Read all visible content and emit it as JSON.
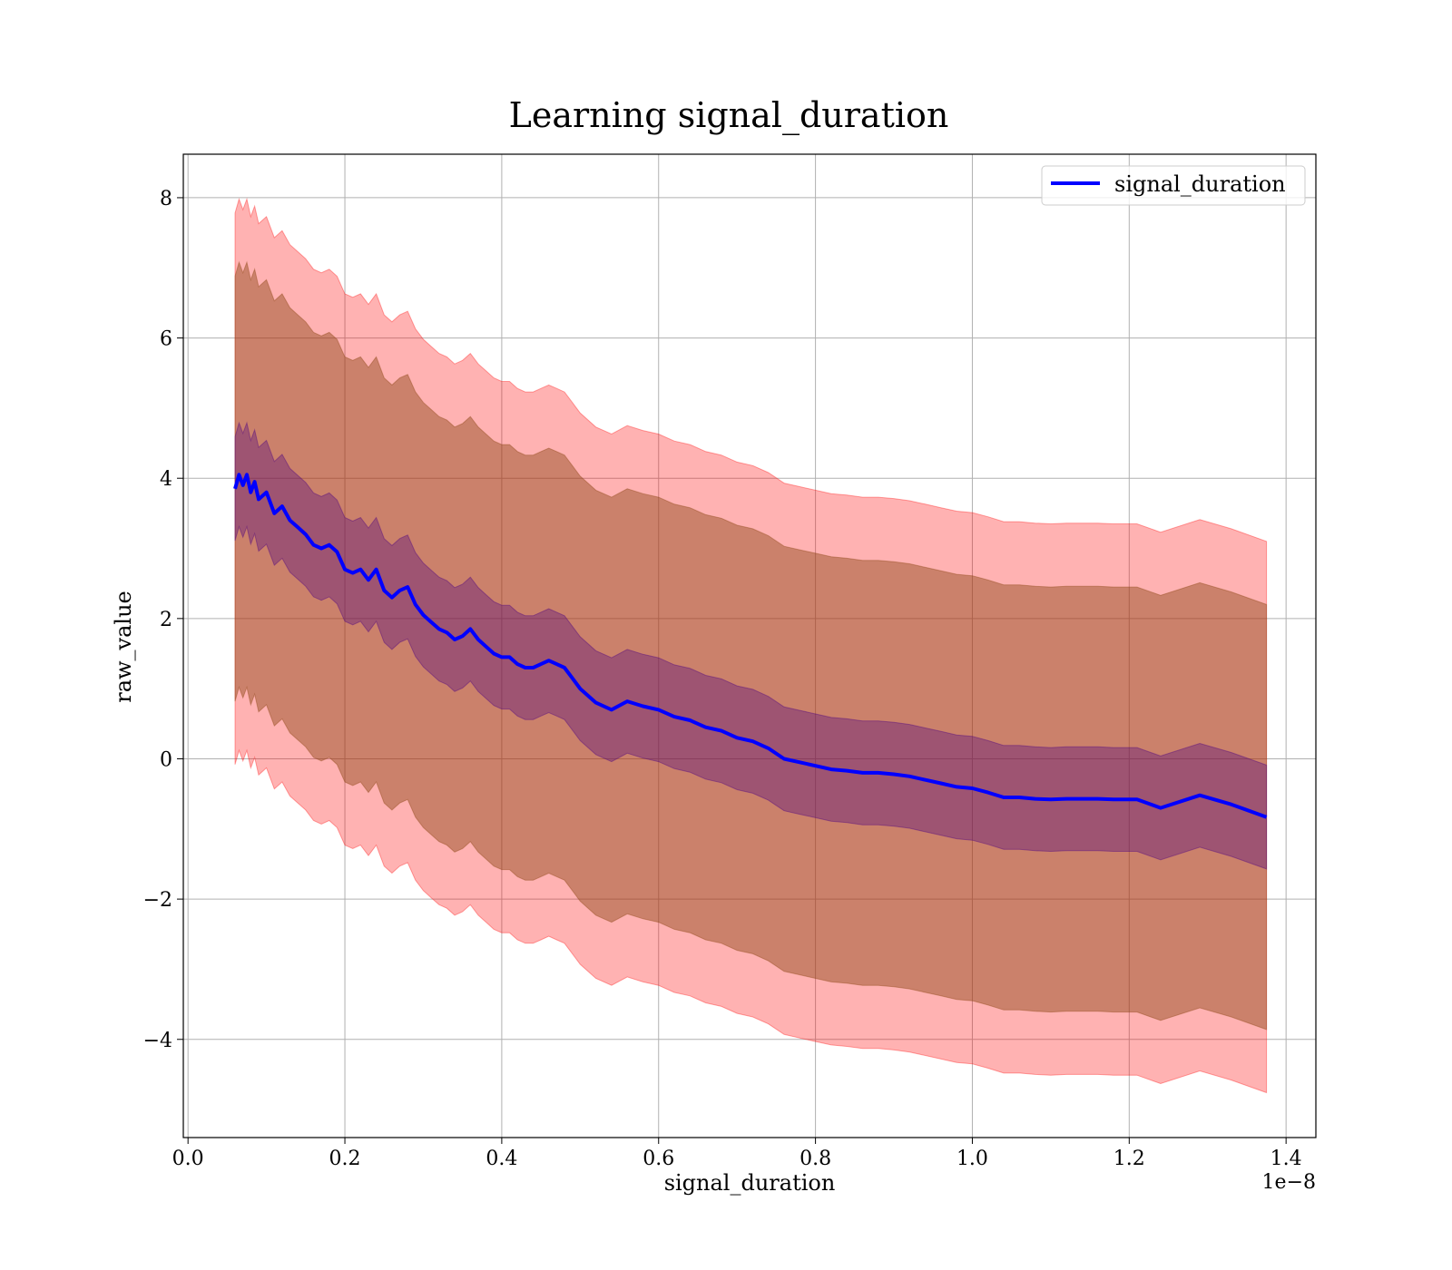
{
  "chart_data": {
    "type": "line",
    "title": "Learning signal_duration",
    "xlabel": "signal_duration",
    "ylabel": "raw_value",
    "x_offset_label": "1e−8",
    "xlim": [
      -0.006,
      1.438
    ],
    "ylim": [
      -5.4,
      8.62
    ],
    "x_ticks": [
      0.0,
      0.2,
      0.4,
      0.6,
      0.8,
      1.0,
      1.2,
      1.4
    ],
    "x_tick_labels": [
      "0.0",
      "0.2",
      "0.4",
      "0.6",
      "0.8",
      "1.0",
      "1.2",
      "1.4"
    ],
    "y_ticks": [
      -4,
      -2,
      0,
      2,
      4,
      6,
      8
    ],
    "y_tick_labels": [
      "−4",
      "−2",
      "0",
      "2",
      "4",
      "6",
      "8"
    ],
    "grid": true,
    "legend_position": "top-right",
    "colors": {
      "line": "#0000ff",
      "band_outer": "#ff0000",
      "band_middle": "#8b4513",
      "band_inner": "#4b0082",
      "grid": "#b0b0b0"
    },
    "series": [
      {
        "name": "signal_duration",
        "x": [
          0.06,
          0.065,
          0.07,
          0.075,
          0.08,
          0.085,
          0.09,
          0.1,
          0.11,
          0.12,
          0.13,
          0.14,
          0.15,
          0.16,
          0.17,
          0.18,
          0.19,
          0.2,
          0.21,
          0.22,
          0.23,
          0.24,
          0.25,
          0.26,
          0.27,
          0.28,
          0.29,
          0.3,
          0.31,
          0.32,
          0.33,
          0.34,
          0.35,
          0.36,
          0.37,
          0.38,
          0.39,
          0.4,
          0.41,
          0.42,
          0.43,
          0.44,
          0.45,
          0.46,
          0.47,
          0.48,
          0.49,
          0.5,
          0.52,
          0.54,
          0.56,
          0.58,
          0.6,
          0.62,
          0.64,
          0.66,
          0.68,
          0.7,
          0.72,
          0.74,
          0.76,
          0.78,
          0.8,
          0.82,
          0.84,
          0.86,
          0.88,
          0.9,
          0.92,
          0.94,
          0.96,
          0.98,
          1.0,
          1.02,
          1.04,
          1.06,
          1.08,
          1.1,
          1.12,
          1.14,
          1.16,
          1.18,
          1.2,
          1.21,
          1.24,
          1.29,
          1.33,
          1.375
        ],
        "values": [
          3.85,
          4.05,
          3.9,
          4.05,
          3.8,
          3.95,
          3.7,
          3.8,
          3.5,
          3.6,
          3.4,
          3.3,
          3.2,
          3.05,
          3.0,
          3.05,
          2.95,
          2.7,
          2.65,
          2.7,
          2.55,
          2.7,
          2.4,
          2.3,
          2.4,
          2.45,
          2.2,
          2.05,
          1.95,
          1.85,
          1.8,
          1.7,
          1.75,
          1.85,
          1.7,
          1.6,
          1.5,
          1.45,
          1.45,
          1.35,
          1.3,
          1.3,
          1.35,
          1.4,
          1.35,
          1.3,
          1.15,
          1.0,
          0.8,
          0.7,
          0.82,
          0.75,
          0.7,
          0.6,
          0.55,
          0.45,
          0.4,
          0.3,
          0.25,
          0.15,
          0.0,
          -0.05,
          -0.1,
          -0.15,
          -0.17,
          -0.2,
          -0.2,
          -0.22,
          -0.25,
          -0.3,
          -0.35,
          -0.4,
          -0.42,
          -0.48,
          -0.55,
          -0.55,
          -0.57,
          -0.58,
          -0.57,
          -0.57,
          -0.57,
          -0.58,
          -0.58,
          -0.58,
          -0.7,
          -0.52,
          -0.65,
          -0.83
        ],
        "band_inner_halfwidth": 0.74,
        "band_middle_halfwidth": 3.03,
        "band_outer_halfwidth": 3.93
      }
    ]
  }
}
